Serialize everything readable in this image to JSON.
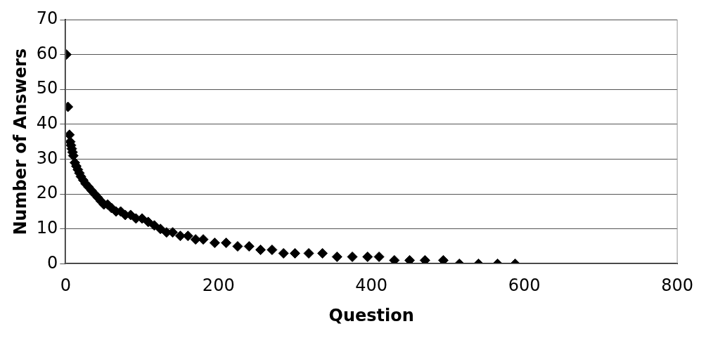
{
  "chart_data": {
    "type": "scatter",
    "xlabel": "Question",
    "ylabel": "Number of Answers",
    "xlim": [
      0,
      800
    ],
    "xticks": [
      0,
      200,
      400,
      600,
      800
    ],
    "ylim": [
      0,
      70
    ],
    "yticks": [
      0,
      10,
      20,
      30,
      40,
      50,
      60,
      70
    ],
    "grid": "y",
    "legend": false,
    "marker": "diamond",
    "series": [
      {
        "color": "#000000",
        "x": [
          1,
          3,
          5,
          6,
          7,
          8,
          9,
          10,
          12,
          14,
          16,
          18,
          20,
          23,
          26,
          30,
          34,
          38,
          42,
          46,
          50,
          55,
          60,
          66,
          72,
          78,
          85,
          92,
          100,
          108,
          116,
          124,
          132,
          140,
          150,
          160,
          170,
          180,
          195,
          210,
          225,
          240,
          255,
          270,
          285,
          300,
          318,
          336,
          355,
          375,
          395,
          410,
          430,
          450,
          470,
          494,
          515,
          540,
          565,
          588
        ],
        "values": [
          60,
          45,
          37,
          35,
          34,
          33,
          32,
          31,
          29,
          28,
          27,
          26,
          25,
          24,
          23,
          22,
          21,
          20,
          19,
          18,
          17,
          17,
          16,
          15,
          15,
          14,
          14,
          13,
          13,
          12,
          11,
          10,
          9,
          9,
          8,
          8,
          7,
          7,
          6,
          6,
          5,
          5,
          4,
          4,
          3,
          3,
          3,
          3,
          2,
          2,
          2,
          2,
          1,
          1,
          1,
          1,
          0,
          0,
          0,
          0
        ]
      }
    ]
  }
}
